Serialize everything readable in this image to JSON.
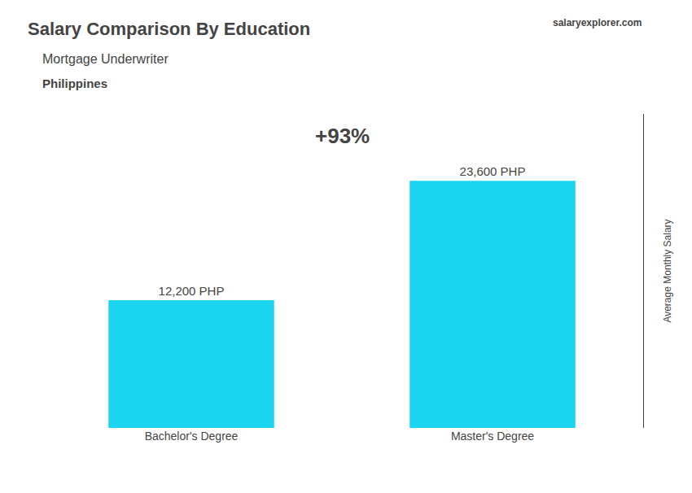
{
  "chart_data": {
    "type": "bar",
    "title": "Salary Comparison By Education",
    "subtitle": "Mortgage Underwriter",
    "annotations": [
      "Philippines",
      "salaryexplorer.com",
      "+93%"
    ],
    "ylabel": "Average Monthly Salary",
    "categories": [
      "Bachelor's Degree",
      "Master's Degree"
    ],
    "values": [
      12200,
      23600
    ],
    "value_labels": [
      "12,200 PHP",
      "23,600 PHP"
    ],
    "data_labels": true,
    "color": "#1ad4f0",
    "ylim": [
      0,
      30000
    ],
    "yticks": [],
    "tick_labels": "x",
    "grid": false
  }
}
